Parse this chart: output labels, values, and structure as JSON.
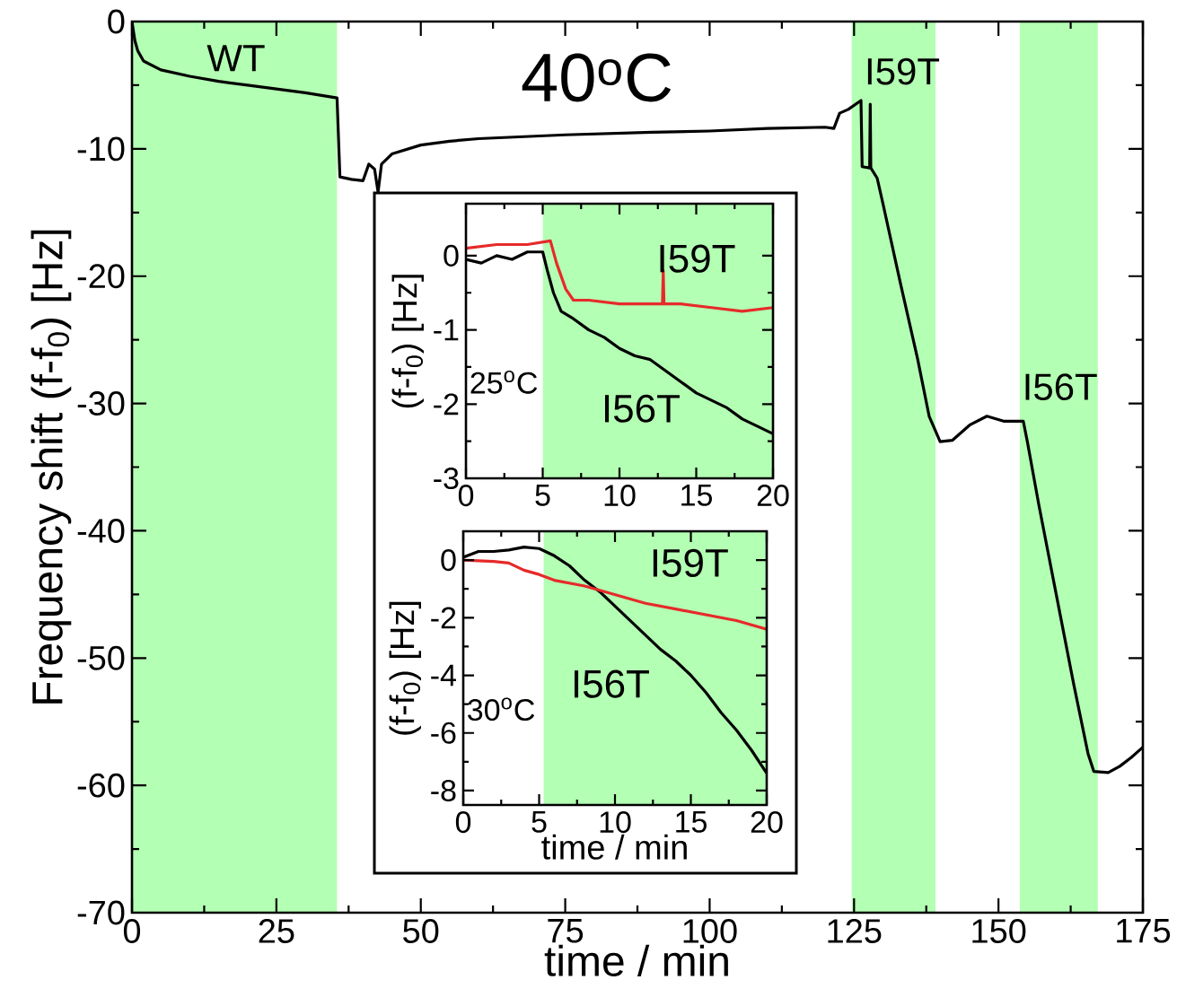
{
  "chart_data": [
    {
      "type": "line",
      "title": "40$^{o}$C",
      "xlabel": "time / min",
      "ylabel": "Frequency shift (f-f$_{0}$) [Hz]",
      "xlim": [
        0,
        175
      ],
      "ylim": [
        -70,
        0
      ],
      "xticks": [
        0,
        25,
        50,
        75,
        100,
        125,
        150,
        175
      ],
      "yticks": [
        -70,
        -60,
        -50,
        -40,
        -30,
        -20,
        -10,
        0
      ],
      "series": [
        {
          "color": "#000000",
          "x": [
            0,
            0.5,
            1,
            2,
            5,
            10,
            15,
            20,
            25,
            30,
            35.5,
            36,
            38,
            40,
            41,
            42,
            42.6,
            43.2,
            45,
            50,
            55,
            60,
            75,
            90,
            100,
            110,
            120,
            121.5,
            122.5,
            124,
            126.2,
            126.4,
            127.7,
            127.8,
            127.9,
            129,
            130,
            133,
            136,
            138,
            139.9,
            142,
            145,
            148,
            151,
            154.3,
            155,
            157,
            160,
            163,
            165.5,
            166.5,
            169,
            171,
            173,
            175
          ],
          "values": [
            0,
            -1.5,
            -2.3,
            -3.1,
            -3.8,
            -4.3,
            -4.7,
            -5.0,
            -5.3,
            -5.6,
            -6.0,
            -12.2,
            -12.4,
            -12.5,
            -11.2,
            -11.6,
            -13.4,
            -11.2,
            -10.4,
            -9.7,
            -9.4,
            -9.2,
            -8.9,
            -8.7,
            -8.6,
            -8.4,
            -8.3,
            -8.4,
            -7.2,
            -6.9,
            -6.2,
            -11.4,
            -11.5,
            -6.5,
            -11.5,
            -12.3,
            -14.3,
            -20.5,
            -26.5,
            -31,
            -33.0,
            -32.9,
            -31.7,
            -31.0,
            -31.4,
            -31.4,
            -33,
            -38,
            -45,
            -52,
            -57.5,
            -58.9,
            -59,
            -58.5,
            -57.8,
            -57.0
          ]
        }
      ],
      "bands": [
        {
          "axis": "x",
          "from": 0,
          "to": 35.5,
          "color": "#b3ffb3",
          "label": "WT"
        },
        {
          "axis": "x",
          "from": 124.6,
          "to": 139.1,
          "color": "#b3ffb3",
          "label": "I59T"
        },
        {
          "axis": "x",
          "from": 153.7,
          "to": 167.2,
          "color": "#b3ffb3",
          "label": "I56T"
        }
      ]
    },
    {
      "type": "line",
      "ylabel": "(f-f$_{0}$) [Hz]",
      "xlim": [
        0,
        20
      ],
      "ylim": [
        -3,
        0.7
      ],
      "xticks": [
        0,
        5,
        10,
        15,
        20
      ],
      "yticks": [
        -3,
        -2,
        -1,
        0
      ],
      "series": [
        {
          "color": "#000000",
          "x": [
            0,
            1,
            2,
            3,
            4,
            5,
            5.3,
            5.7,
            6.2,
            7,
            8,
            9,
            10,
            11,
            12,
            13,
            14,
            15,
            16,
            17,
            18,
            19,
            20
          ],
          "values": [
            -0.05,
            -0.1,
            0.0,
            -0.05,
            0.05,
            0.05,
            -0.2,
            -0.5,
            -0.75,
            -0.85,
            -1.0,
            -1.1,
            -1.25,
            -1.35,
            -1.4,
            -1.55,
            -1.7,
            -1.85,
            -1.95,
            -2.05,
            -2.2,
            -2.3,
            -2.4
          ]
        },
        {
          "color": "#e62a2a",
          "x": [
            0,
            2,
            4,
            5.5,
            5.9,
            6.5,
            7,
            8,
            10,
            12,
            12.8,
            12.85,
            12.9,
            14,
            16,
            18,
            20
          ],
          "values": [
            0.1,
            0.15,
            0.15,
            0.2,
            -0.1,
            -0.45,
            -0.6,
            -0.6,
            -0.65,
            -0.65,
            -0.65,
            -0.2,
            -0.65,
            -0.65,
            -0.7,
            -0.75,
            -0.7
          ]
        }
      ],
      "bands": [
        {
          "axis": "x",
          "from": 5,
          "to": 20,
          "color": "#b3ffb3"
        }
      ],
      "annotations": [
        "I59T",
        "I56T",
        "25$^{o}$C"
      ]
    },
    {
      "type": "line",
      "xlabel": "time / min",
      "ylabel": "(f-f$_{0}$) [Hz]",
      "xlim": [
        0,
        20
      ],
      "ylim": [
        -8.5,
        1
      ],
      "xticks": [
        0,
        5,
        10,
        15,
        20
      ],
      "yticks": [
        -8,
        -6,
        -4,
        -2,
        0
      ],
      "series": [
        {
          "color": "#000000",
          "x": [
            0,
            1,
            2,
            3,
            4,
            5,
            6,
            7,
            8,
            9,
            10,
            11,
            12,
            13,
            14,
            15,
            16,
            17,
            18,
            19,
            20
          ],
          "values": [
            0.1,
            0.3,
            0.3,
            0.35,
            0.45,
            0.4,
            0.15,
            -0.2,
            -0.7,
            -1.1,
            -1.6,
            -2.1,
            -2.6,
            -3.1,
            -3.5,
            -4.0,
            -4.6,
            -5.3,
            -5.9,
            -6.6,
            -7.4
          ]
        },
        {
          "color": "#e62a2a",
          "x": [
            0,
            2,
            3,
            4,
            5,
            6,
            8,
            10,
            12,
            14,
            16,
            18,
            20
          ],
          "values": [
            0,
            -0.05,
            -0.1,
            -0.35,
            -0.5,
            -0.7,
            -0.9,
            -1.2,
            -1.5,
            -1.7,
            -1.9,
            -2.1,
            -2.4
          ]
        }
      ],
      "bands": [
        {
          "axis": "x",
          "from": 5.3,
          "to": 20,
          "color": "#b3ffb3"
        }
      ],
      "annotations": [
        "I59T",
        "I56T",
        "30$^{o}$C"
      ]
    }
  ]
}
